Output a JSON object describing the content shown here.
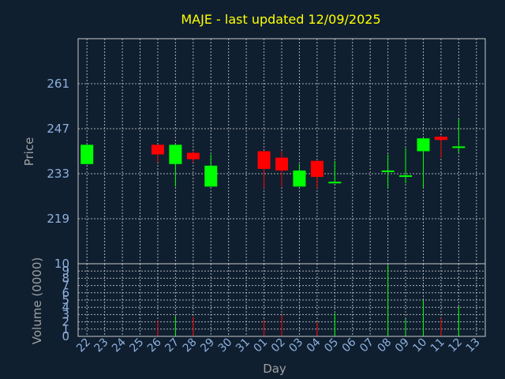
{
  "chart_data": {
    "type": "candlestick",
    "title": "MAJE - last updated 12/09/2025",
    "ylabel": "Price",
    "xlabel": "Day",
    "volume_label": "Volume (0000)",
    "price_ticks": [
      219,
      233,
      247,
      261
    ],
    "ylim": [
      205,
      275
    ],
    "volume_ticks": [
      0,
      1,
      2,
      3,
      4,
      5,
      6,
      7,
      8,
      9,
      10
    ],
    "volume_ylim": [
      0,
      10
    ],
    "x_ticks": [
      "22",
      "23",
      "24",
      "25",
      "26",
      "27",
      "28",
      "29",
      "30",
      "31",
      "01",
      "02",
      "03",
      "04",
      "05",
      "06",
      "07",
      "08",
      "09",
      "10",
      "11",
      "12",
      "13"
    ],
    "grid": true,
    "candles": [
      {
        "day": "22",
        "open": 236,
        "high": 242,
        "low": 236,
        "close": 242
      },
      {
        "day": "26",
        "open": 242,
        "high": 242,
        "low": 236.5,
        "close": 239
      },
      {
        "day": "27",
        "open": 236,
        "high": 242,
        "low": 229,
        "close": 242
      },
      {
        "day": "28",
        "open": 239.5,
        "high": 240,
        "low": 236.5,
        "close": 237.5
      },
      {
        "day": "29",
        "open": 229,
        "high": 239,
        "low": 229,
        "close": 235.5
      },
      {
        "day": "01",
        "open": 240,
        "high": 240,
        "low": 228.5,
        "close": 234.5
      },
      {
        "day": "02",
        "open": 238,
        "high": 240,
        "low": 229,
        "close": 234
      },
      {
        "day": "03",
        "open": 229,
        "high": 236,
        "low": 229,
        "close": 234
      },
      {
        "day": "04",
        "open": 237,
        "high": 237,
        "low": 228.5,
        "close": 232
      },
      {
        "day": "05",
        "open": 230,
        "high": 237,
        "low": 230,
        "close": 230.5
      },
      {
        "day": "08",
        "open": 233.5,
        "high": 239,
        "low": 228.5,
        "close": 234
      },
      {
        "day": "09",
        "open": 232,
        "high": 241,
        "low": 230,
        "close": 232.5
      },
      {
        "day": "10",
        "open": 240,
        "high": 244,
        "low": 228.5,
        "close": 244
      },
      {
        "day": "11",
        "open": 244.5,
        "high": 245,
        "low": 238,
        "close": 243.5
      },
      {
        "day": "12",
        "open": 241,
        "high": 250,
        "low": 239.5,
        "close": 241.5
      }
    ],
    "volumes": [
      {
        "day": "26",
        "value": 2.2,
        "color": "red"
      },
      {
        "day": "27",
        "value": 2.8,
        "color": "green"
      },
      {
        "day": "28",
        "value": 2.7,
        "color": "red"
      },
      {
        "day": "01",
        "value": 2.3,
        "color": "red"
      },
      {
        "day": "02",
        "value": 2.9,
        "color": "red"
      },
      {
        "day": "04",
        "value": 2.0,
        "color": "red"
      },
      {
        "day": "05",
        "value": 3.2,
        "color": "green"
      },
      {
        "day": "08",
        "value": 9.8,
        "color": "green"
      },
      {
        "day": "09",
        "value": 2.4,
        "color": "green"
      },
      {
        "day": "10",
        "value": 5.0,
        "color": "green"
      },
      {
        "day": "11",
        "value": 2.5,
        "color": "red"
      },
      {
        "day": "12",
        "value": 4.1,
        "color": "green"
      }
    ],
    "colors": {
      "up": "#00ff00",
      "down": "#ff0000",
      "background": "#0f1f30"
    }
  }
}
